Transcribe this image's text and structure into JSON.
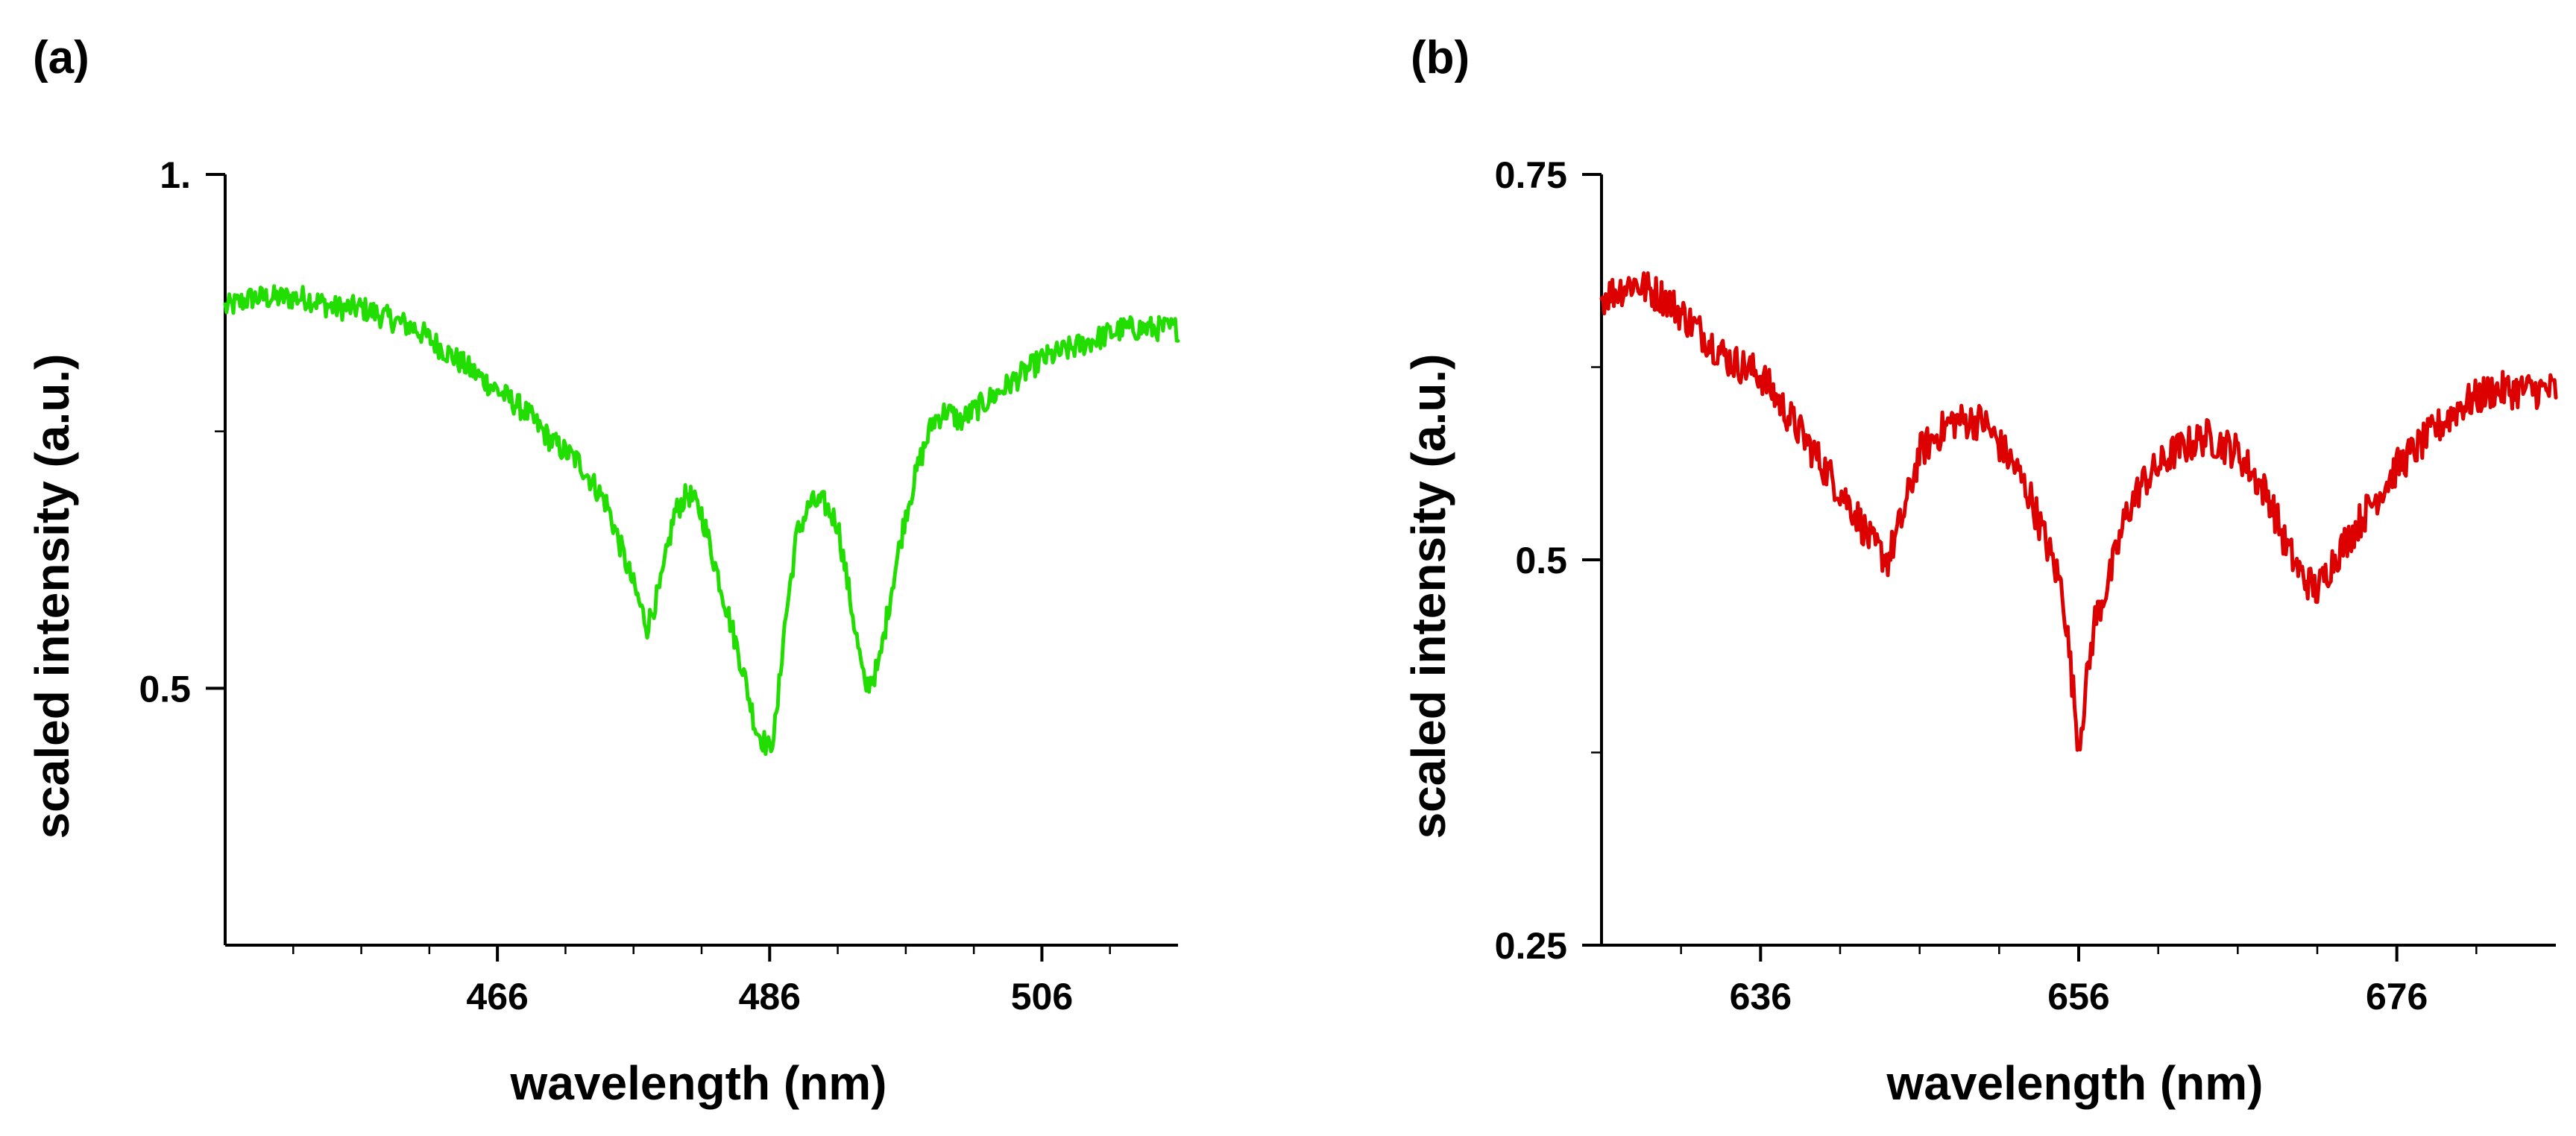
{
  "chart_data": [
    {
      "panel_label": "(a)",
      "type": "line",
      "xlabel": "wavelength (nm)",
      "ylabel": "scaled intensity (a.u.)",
      "xlim": [
        446,
        516
      ],
      "ylim": [
        0.25,
        1.0
      ],
      "xticks": [
        466,
        486,
        506
      ],
      "xtick_labels": [
        "466",
        "486",
        "506"
      ],
      "xminor": [
        451,
        456,
        461,
        471,
        476,
        481,
        491,
        496,
        501,
        511
      ],
      "yticks": [
        0.5,
        1.0
      ],
      "ytick_labels": [
        "0.5",
        "1."
      ],
      "yminor": [
        0.75
      ],
      "noise": 0.012,
      "series": [
        {
          "name": "spectrum",
          "color": "#22dd00",
          "x": [
            446,
            448,
            450,
            452,
            454,
            456,
            458,
            460,
            462,
            464,
            466,
            468,
            470,
            472,
            474,
            476,
            477,
            478,
            479,
            480,
            481,
            482,
            483,
            484,
            485,
            486,
            486.5,
            487,
            488,
            489,
            490,
            491,
            492,
            493,
            494,
            495,
            496,
            497,
            498,
            499,
            500,
            502,
            504,
            506,
            508,
            510,
            512,
            514,
            516
          ],
          "y": [
            0.87,
            0.88,
            0.88,
            0.88,
            0.87,
            0.87,
            0.86,
            0.85,
            0.83,
            0.81,
            0.79,
            0.77,
            0.74,
            0.72,
            0.68,
            0.6,
            0.56,
            0.6,
            0.67,
            0.69,
            0.67,
            0.62,
            0.57,
            0.52,
            0.46,
            0.44,
            0.47,
            0.55,
            0.65,
            0.68,
            0.68,
            0.66,
            0.58,
            0.5,
            0.52,
            0.6,
            0.67,
            0.72,
            0.76,
            0.77,
            0.76,
            0.78,
            0.8,
            0.82,
            0.83,
            0.84,
            0.85,
            0.85,
            0.85
          ]
        }
      ]
    },
    {
      "panel_label": "(b)",
      "type": "line",
      "xlabel": "wavelength (nm)",
      "ylabel": "scaled intensity (a.u.)",
      "xlim": [
        626,
        686
      ],
      "ylim": [
        0.25,
        0.75
      ],
      "xticks": [
        636,
        656,
        676
      ],
      "xtick_labels": [
        "636",
        "656",
        "676"
      ],
      "xminor": [
        631,
        641,
        646,
        651,
        661,
        666,
        671,
        681
      ],
      "yticks": [
        0.25,
        0.5,
        0.75
      ],
      "ytick_labels": [
        "0.25",
        "0.5",
        "0.75"
      ],
      "yminor": [
        0.375,
        0.625
      ],
      "noise": 0.012,
      "series": [
        {
          "name": "spectrum",
          "color": "#dd0000",
          "x": [
            626,
            628,
            630,
            632,
            634,
            636,
            638,
            640,
            642,
            643,
            644,
            645,
            646,
            647,
            648,
            650,
            652,
            653,
            654,
            655,
            655.5,
            656,
            656.5,
            657,
            658,
            659,
            660,
            662,
            664,
            666,
            668,
            669,
            670,
            671,
            672,
            674,
            676,
            678,
            680,
            682,
            684,
            686
          ],
          "y": [
            0.67,
            0.68,
            0.67,
            0.65,
            0.63,
            0.62,
            0.59,
            0.56,
            0.53,
            0.51,
            0.5,
            0.53,
            0.57,
            0.58,
            0.59,
            0.59,
            0.56,
            0.54,
            0.51,
            0.48,
            0.43,
            0.38,
            0.42,
            0.46,
            0.49,
            0.53,
            0.55,
            0.57,
            0.58,
            0.57,
            0.54,
            0.51,
            0.49,
            0.48,
            0.5,
            0.53,
            0.56,
            0.58,
            0.6,
            0.61,
            0.61,
            0.61
          ]
        }
      ]
    }
  ]
}
